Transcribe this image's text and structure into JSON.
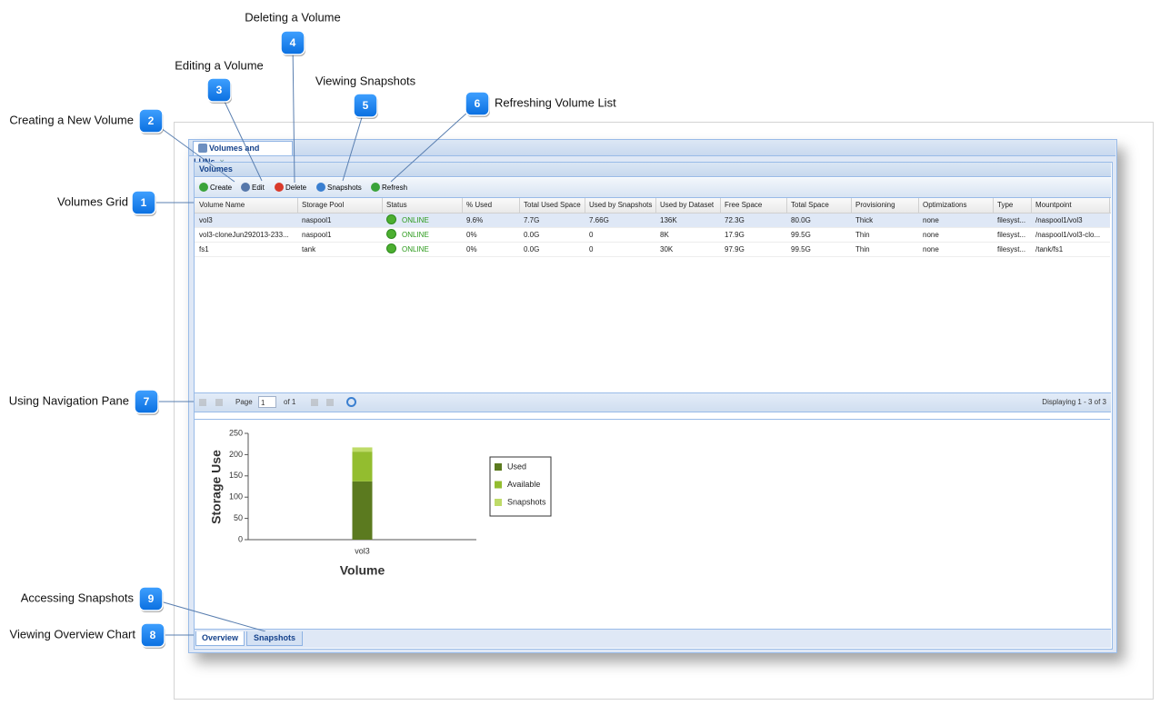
{
  "callouts": [
    {
      "number": 1,
      "label": "Volumes Grid"
    },
    {
      "number": 2,
      "label": "Creating a New Volume"
    },
    {
      "number": 3,
      "label": "Editing a Volume"
    },
    {
      "number": 4,
      "label": "Deleting a Volume"
    },
    {
      "number": 5,
      "label": "Viewing Snapshots"
    },
    {
      "number": 6,
      "label": "Refreshing Volume List"
    },
    {
      "number": 7,
      "label": "Using Navigation Pane"
    },
    {
      "number": 8,
      "label": "Viewing Overview Chart"
    },
    {
      "number": 9,
      "label": "Accessing Snapshots"
    }
  ],
  "window": {
    "tab": "Volumes and LUNs",
    "panel_title": "Volumes",
    "toolbar": [
      "Create",
      "Edit",
      "Delete",
      "Snapshots",
      "Refresh"
    ],
    "table": {
      "columns": [
        "Volume Name",
        "Storage Pool",
        "Status",
        "% Used",
        "Total Used Space",
        "Used by Snapshots",
        "Used by Dataset",
        "Free Space",
        "Total Space",
        "Provisioning",
        "Optimizations",
        "Type",
        "Mountpoint"
      ],
      "rows": [
        [
          "vol3",
          "naspool1",
          "ONLINE",
          "9.6%",
          "7.7G",
          "7.66G",
          "136K",
          "72.3G",
          "80.0G",
          "Thick",
          "none",
          "filesyst...",
          "/naspool1/vol3"
        ],
        [
          "vol3-cloneJun292013-233...",
          "naspool1",
          "ONLINE",
          "0%",
          "0.0G",
          "0",
          "8K",
          "17.9G",
          "99.5G",
          "Thin",
          "none",
          "filesyst...",
          "/naspool1/vol3-clo..."
        ],
        [
          "fs1",
          "tank",
          "ONLINE",
          "0%",
          "0.0G",
          "0",
          "30K",
          "97.9G",
          "99.5G",
          "Thin",
          "none",
          "filesyst...",
          "/tank/fs1"
        ]
      ]
    },
    "pager": {
      "page_label": "Page",
      "page": "1",
      "of": "of 1",
      "status": "Displaying 1 - 3 of 3"
    },
    "tabs": [
      "Overview",
      "Snapshots"
    ]
  },
  "chart_data": {
    "type": "bar",
    "stacked": true,
    "categories": [
      "vol3"
    ],
    "series": [
      {
        "name": "Used",
        "color": "#5b7a1f",
        "values": [
          137
        ]
      },
      {
        "name": "Available",
        "color": "#93bd2f",
        "values": [
          70
        ]
      },
      {
        "name": "Snapshots",
        "color": "#bedb68",
        "values": [
          10
        ]
      }
    ],
    "ylim": [
      0,
      250
    ],
    "yticks": [
      0,
      50,
      100,
      150,
      200,
      250
    ],
    "ylabel": "Storage Use",
    "xlabel": "Volume"
  }
}
